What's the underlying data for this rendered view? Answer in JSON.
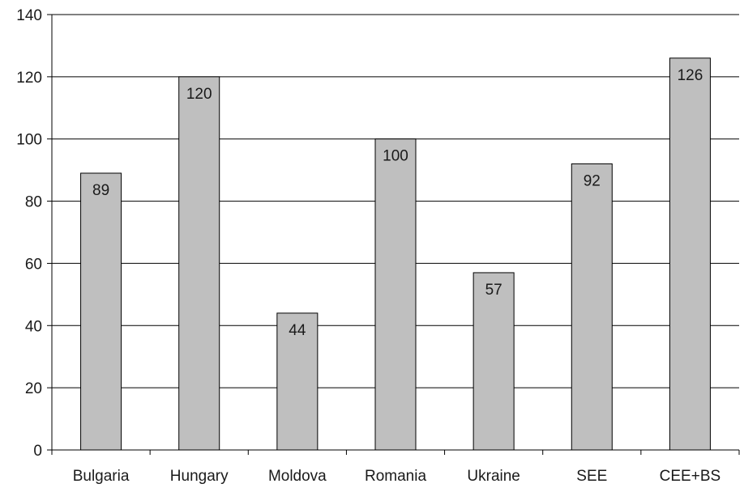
{
  "chart_data": {
    "type": "bar",
    "title": "",
    "xlabel": "",
    "ylabel": "",
    "categories": [
      "Bulgaria",
      "Hungary",
      "Moldova",
      "Romania",
      "Ukraine",
      "SEE",
      "CEE+BS"
    ],
    "values": [
      89,
      120,
      44,
      100,
      57,
      92,
      126
    ],
    "data_labels": [
      "89",
      "120",
      "44",
      "100",
      "57",
      "92",
      "126"
    ],
    "ylim": [
      0,
      140
    ],
    "yticks": [
      0,
      20,
      40,
      60,
      80,
      100,
      120,
      140
    ],
    "grid": true,
    "legend": "none",
    "colors": {
      "bar_fill": "#bfbfbf",
      "bar_stroke": "#000000",
      "grid": "#000000",
      "axis": "#000000",
      "text": "#1a1a1a"
    }
  }
}
